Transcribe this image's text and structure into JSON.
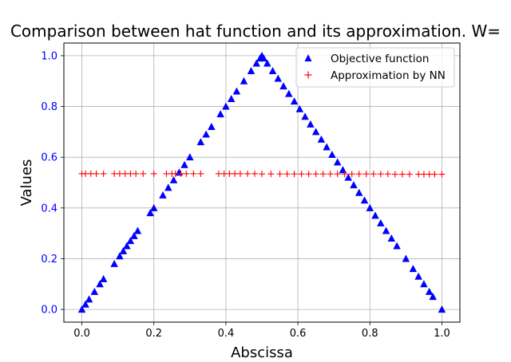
{
  "chart_data": {
    "type": "scatter",
    "title": "Comparison between hat function and its approximation. W=",
    "xlabel": "Abscissa",
    "ylabel": "Values",
    "xlim": [
      -0.05,
      1.05
    ],
    "ylim": [
      -0.05,
      1.05
    ],
    "xticks": [
      "0.0",
      "0.2",
      "0.4",
      "0.6",
      "0.8",
      "1.0"
    ],
    "yticks": [
      "0.0",
      "0.2",
      "0.4",
      "0.6",
      "0.8",
      "1.0"
    ],
    "grid": true,
    "legend_placement": "top-right",
    "colors": {
      "objective": "#0000ff",
      "approximation": "#ff0000",
      "ytick_labels": "#0000ff",
      "grid": "#b0b0b0"
    },
    "series": [
      {
        "name": "Objective function",
        "marker": "triangle",
        "x": [
          0.0,
          0.01,
          0.02,
          0.035,
          0.05,
          0.06,
          0.09,
          0.105,
          0.115,
          0.125,
          0.135,
          0.145,
          0.155,
          0.19,
          0.2,
          0.225,
          0.24,
          0.255,
          0.27,
          0.285,
          0.3,
          0.33,
          0.345,
          0.36,
          0.385,
          0.4,
          0.415,
          0.43,
          0.45,
          0.47,
          0.485,
          0.495,
          0.5,
          0.505,
          0.515,
          0.53,
          0.545,
          0.56,
          0.575,
          0.59,
          0.605,
          0.62,
          0.635,
          0.65,
          0.665,
          0.68,
          0.695,
          0.71,
          0.725,
          0.74,
          0.755,
          0.77,
          0.785,
          0.8,
          0.815,
          0.83,
          0.845,
          0.86,
          0.875,
          0.9,
          0.92,
          0.935,
          0.95,
          0.965,
          0.975,
          1.0
        ],
        "y": [
          0.0,
          0.02,
          0.04,
          0.07,
          0.1,
          0.12,
          0.18,
          0.21,
          0.23,
          0.25,
          0.27,
          0.29,
          0.31,
          0.38,
          0.4,
          0.45,
          0.48,
          0.51,
          0.54,
          0.57,
          0.6,
          0.66,
          0.69,
          0.72,
          0.77,
          0.8,
          0.83,
          0.86,
          0.9,
          0.94,
          0.97,
          0.99,
          1.0,
          0.99,
          0.97,
          0.94,
          0.91,
          0.88,
          0.85,
          0.82,
          0.79,
          0.76,
          0.73,
          0.7,
          0.67,
          0.64,
          0.61,
          0.58,
          0.55,
          0.52,
          0.49,
          0.46,
          0.43,
          0.4,
          0.37,
          0.34,
          0.31,
          0.28,
          0.25,
          0.2,
          0.16,
          0.13,
          0.1,
          0.07,
          0.05,
          0.0
        ]
      },
      {
        "name": "Approximation by NN",
        "marker": "plus",
        "x": [
          0.0,
          0.01,
          0.025,
          0.04,
          0.06,
          0.09,
          0.105,
          0.12,
          0.135,
          0.15,
          0.17,
          0.2,
          0.235,
          0.25,
          0.26,
          0.275,
          0.29,
          0.31,
          0.33,
          0.38,
          0.395,
          0.41,
          0.425,
          0.44,
          0.46,
          0.48,
          0.5,
          0.525,
          0.55,
          0.57,
          0.59,
          0.61,
          0.63,
          0.65,
          0.67,
          0.69,
          0.71,
          0.73,
          0.75,
          0.77,
          0.79,
          0.81,
          0.83,
          0.85,
          0.87,
          0.89,
          0.91,
          0.935,
          0.95,
          0.965,
          0.98,
          1.0
        ],
        "y": [
          0.535,
          0.535,
          0.535,
          0.535,
          0.535,
          0.535,
          0.535,
          0.535,
          0.535,
          0.535,
          0.535,
          0.535,
          0.535,
          0.535,
          0.535,
          0.535,
          0.535,
          0.535,
          0.535,
          0.535,
          0.535,
          0.535,
          0.535,
          0.535,
          0.535,
          0.535,
          0.534,
          0.534,
          0.534,
          0.534,
          0.534,
          0.534,
          0.534,
          0.534,
          0.534,
          0.534,
          0.534,
          0.534,
          0.534,
          0.534,
          0.534,
          0.534,
          0.534,
          0.534,
          0.533,
          0.533,
          0.533,
          0.533,
          0.533,
          0.533,
          0.533,
          0.533
        ]
      }
    ]
  }
}
